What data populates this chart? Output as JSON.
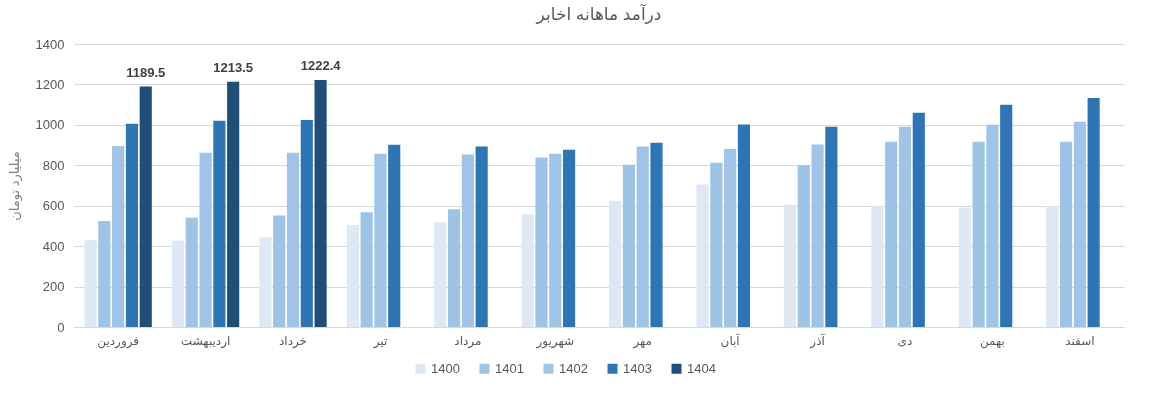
{
  "chart_data": {
    "type": "bar",
    "title": "درآمد ماهانه اخابر",
    "ylabel": "میلیارد تومان",
    "categories": [
      "فروردین",
      "اردیبهشت",
      "خرداد",
      "تیر",
      "مرداد",
      "شهریور",
      "مهر",
      "آبان",
      "آذر",
      "دی",
      "بهمن",
      "اسفند"
    ],
    "series": [
      {
        "name": "1400",
        "color": "#dde8f4",
        "values": [
          431,
          428,
          443,
          505,
          518,
          557,
          625,
          705,
          605,
          600,
          590,
          598
        ]
      },
      {
        "name": "1401",
        "color": "#9dc3e6",
        "values": [
          525,
          541,
          552,
          568,
          582,
          838,
          803,
          812,
          800,
          917,
          917,
          917
        ]
      },
      {
        "name": "1402",
        "color": "#9fc4e7",
        "values": [
          896,
          862,
          862,
          857,
          853,
          857,
          893,
          881,
          903,
          991,
          1000,
          1015
        ]
      },
      {
        "name": "1403",
        "color": "#2e75b6",
        "values": [
          1005,
          1020,
          1024,
          902,
          893,
          877,
          912,
          1002,
          991,
          1060,
          1100,
          1133
        ]
      },
      {
        "name": "1404",
        "color": "#1f4e79",
        "values": [
          1189.5,
          1213.5,
          1222.4,
          null,
          null,
          null,
          null,
          null,
          null,
          null,
          null,
          null
        ],
        "value_labels": [
          "1189.5",
          "1213.5",
          "1222.4",
          null,
          null,
          null,
          null,
          null,
          null,
          null,
          null,
          null
        ]
      }
    ],
    "ylim": [
      0,
      1400
    ],
    "yticks": [
      0,
      200,
      400,
      600,
      800,
      1000,
      1200,
      1400
    ],
    "grid": "y",
    "legend": "bottom"
  }
}
